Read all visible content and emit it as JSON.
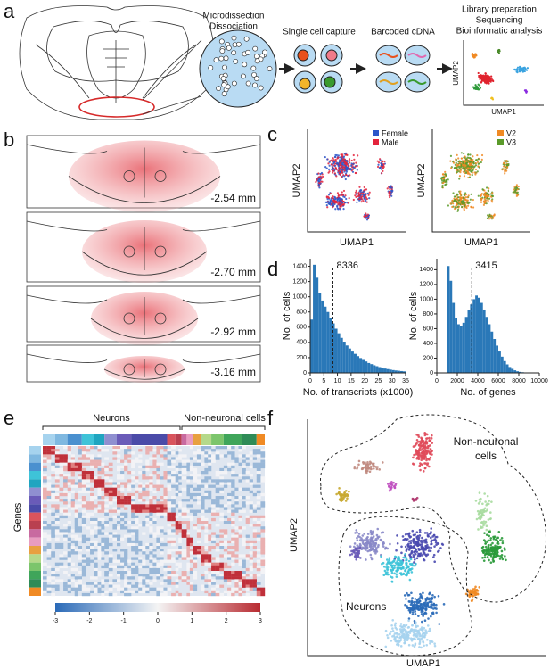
{
  "panel_labels": [
    "a",
    "b",
    "c",
    "d",
    "e",
    "f"
  ],
  "panel_a": {
    "step1": [
      "Microdissection",
      "Dissociation"
    ],
    "step2": "Single cell capture",
    "step3": "Barcoded cDNA",
    "step4": [
      "Library preparation",
      "Sequencing",
      "Bioinformatic analysis"
    ],
    "xlabel": "UMAP1",
    "ylabel": "UMAP2"
  },
  "panel_b": {
    "sections": [
      "-2.54 mm",
      "-2.70 mm",
      "-2.92 mm",
      "-3.16 mm"
    ]
  },
  "panel_c": {
    "plots": [
      {
        "xlabel": "UMAP1",
        "ylabel": "UMAP2",
        "legend": [
          {
            "name": "Female",
            "color": "#2b55c9"
          },
          {
            "name": "Male",
            "color": "#e3233c"
          }
        ]
      },
      {
        "xlabel": "UMAP1",
        "ylabel": "UMAP2",
        "legend": [
          {
            "name": "V2",
            "color": "#f08a24"
          },
          {
            "name": "V3",
            "color": "#5a9a2a"
          }
        ]
      }
    ]
  },
  "chart_data": [
    {
      "type": "histogram",
      "xlabel": "No. of transcripts (x1000)",
      "ylabel": "No. of cells",
      "color": "#2a78b8",
      "bins": [
        0,
        1,
        2,
        3,
        4,
        5,
        6,
        7,
        8,
        9,
        10,
        11,
        12,
        13,
        14,
        15,
        16,
        17,
        18,
        19,
        20,
        21,
        22,
        23,
        24,
        25,
        26,
        27,
        28,
        29,
        30,
        31,
        32,
        33,
        34,
        35
      ],
      "values": [
        700,
        1420,
        1250,
        1050,
        950,
        870,
        800,
        720,
        650,
        580,
        520,
        460,
        410,
        360,
        320,
        280,
        250,
        220,
        195,
        170,
        150,
        130,
        115,
        100,
        88,
        76,
        66,
        57,
        50,
        43,
        37,
        32,
        28,
        24,
        20
      ],
      "xlim": [
        0,
        35
      ],
      "xticks": [
        0,
        5,
        10,
        15,
        20,
        25,
        30,
        35
      ],
      "ylim": [
        0,
        1500
      ],
      "yticks": [
        0,
        200,
        400,
        600,
        800,
        1000,
        1200,
        1400
      ],
      "median": {
        "value": 8.336,
        "label": "8336"
      }
    },
    {
      "type": "histogram",
      "xlabel": "No. of genes",
      "ylabel": "No. of cells",
      "color": "#2a78b8",
      "bins": [
        1000,
        1250,
        1500,
        1750,
        2000,
        2250,
        2500,
        2750,
        3000,
        3250,
        3500,
        3750,
        4000,
        4250,
        4500,
        4750,
        5000,
        5250,
        5500,
        5750,
        6000,
        6250,
        6500,
        6750,
        7000,
        7250,
        7500,
        7750,
        8000,
        8250,
        8500,
        8750,
        9000,
        9250,
        9500,
        9750,
        10000
      ],
      "values": [
        1450,
        1250,
        950,
        750,
        660,
        640,
        680,
        760,
        850,
        930,
        1000,
        1050,
        1020,
        950,
        860,
        760,
        660,
        560,
        460,
        370,
        290,
        220,
        160,
        115,
        80,
        55,
        35,
        22,
        14,
        9,
        6,
        4,
        3,
        2,
        1,
        1
      ],
      "xlim": [
        0,
        10000
      ],
      "xticks": [
        0,
        2000,
        4000,
        6000,
        8000,
        10000
      ],
      "ylim": [
        0,
        1550
      ],
      "yticks": [
        0,
        200,
        400,
        600,
        800,
        1000,
        1200,
        1400
      ],
      "median": {
        "value": 3415,
        "label": "3415"
      }
    }
  ],
  "panel_e": {
    "groups": [
      "Neurons",
      "Non-neuronal cells"
    ],
    "ylabel": "Genes",
    "colorbar_ticks": [
      -3,
      -2,
      -1,
      0,
      1,
      2,
      3
    ]
  },
  "panel_f": {
    "xlabel": "UMAP1",
    "ylabel": "UMAP2",
    "non_neuronal": [
      "Non-neuronal",
      "cells"
    ],
    "neurons": "Neurons"
  }
}
